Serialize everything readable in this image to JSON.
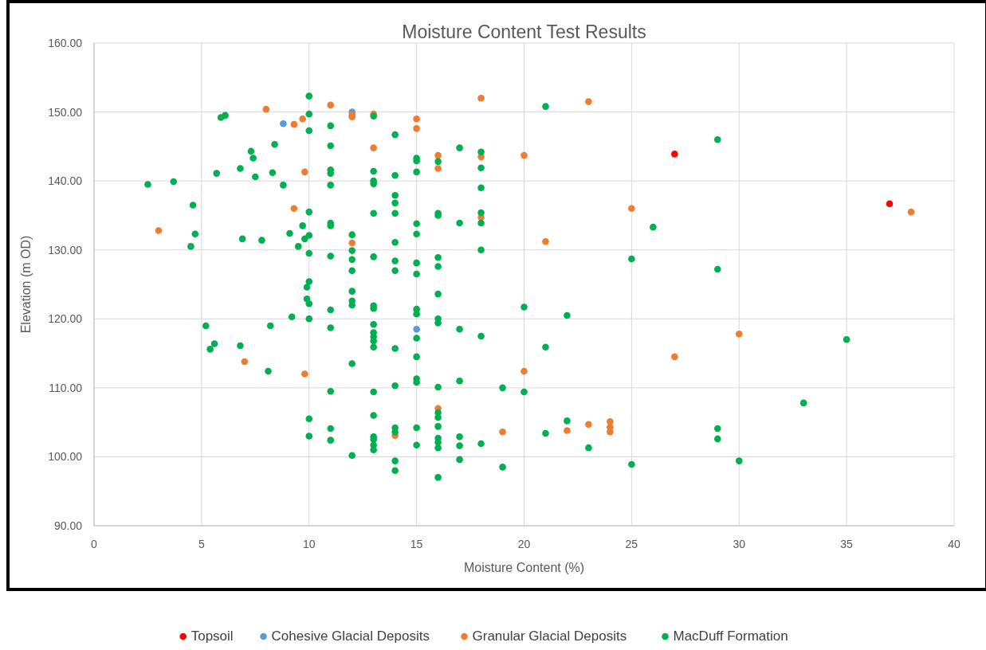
{
  "chart_data": {
    "type": "scatter",
    "title": "Moisture Content Test Results",
    "xlabel": "Moisture Content (%)",
    "ylabel": "Elevation (m OD)",
    "xlim": [
      0,
      40
    ],
    "xticks": [
      0,
      5,
      10,
      15,
      20,
      25,
      30,
      35,
      40
    ],
    "ylim": [
      90,
      160
    ],
    "yticks": [
      {
        "value": 90,
        "label": "90.00"
      },
      {
        "value": 100,
        "label": "100.00"
      },
      {
        "value": 110,
        "label": "110.00"
      },
      {
        "value": 120,
        "label": "120.00"
      },
      {
        "value": 130,
        "label": "130.00"
      },
      {
        "value": 140,
        "label": "140.00"
      },
      {
        "value": 150,
        "label": "150.00"
      },
      {
        "value": 160,
        "label": "160.00"
      }
    ],
    "grid": true,
    "legend": "bottom",
    "marker": "circle",
    "series": [
      {
        "name": "Topsoil",
        "color": "#ff0000",
        "x": [
          27,
          37
        ],
        "values": [
          143.9,
          136.7
        ]
      },
      {
        "name": "Cohesive Glacial Deposits",
        "color": "#5b9bd5",
        "x": [
          8.8,
          12,
          15
        ],
        "values": [
          148.3,
          150.0,
          118.5
        ]
      },
      {
        "name": "Granular Glacial Deposits",
        "color": "#ed7d31",
        "x": [
          8,
          9.3,
          9.7,
          11,
          12,
          12,
          13,
          15,
          15,
          18,
          23,
          13,
          16,
          16,
          18,
          20,
          9.8,
          9.3,
          3,
          12,
          18,
          21,
          25,
          38,
          7,
          9.8,
          14,
          16,
          19,
          20,
          22,
          23,
          24,
          24,
          24,
          27,
          30
        ],
        "values": [
          150.4,
          148.2,
          149.0,
          151.0,
          149.6,
          149.3,
          149.7,
          149.0,
          147.6,
          152.0,
          151.5,
          144.8,
          143.7,
          141.8,
          143.5,
          143.7,
          141.3,
          136.0,
          132.8,
          131.0,
          134.7,
          131.2,
          136.0,
          135.5,
          113.8,
          112.0,
          103.1,
          107.0,
          103.6,
          112.4,
          103.8,
          104.7,
          105.1,
          104.3,
          103.6,
          114.5,
          117.8
        ]
      },
      {
        "name": "MacDuff Formation",
        "color": "#00b050",
        "x": [
          2.5,
          3.7,
          4.5,
          4.6,
          4.7,
          5.2,
          5.4,
          5.6,
          5.7,
          5.9,
          6.1,
          6.8,
          6.8,
          6.9,
          7.3,
          7.4,
          7.5,
          7.8,
          8.1,
          8.2,
          8.3,
          8.4,
          8.8,
          9.1,
          9.2,
          9.5,
          9.7,
          9.8,
          9.9,
          9.9,
          10,
          10,
          10,
          10,
          10,
          10,
          10,
          10,
          10,
          10,
          10,
          11,
          11,
          11,
          11,
          11,
          11,
          11,
          11,
          11,
          11,
          11,
          11,
          11,
          12,
          12,
          12,
          12,
          12,
          12,
          12,
          12,
          12,
          13,
          13,
          13,
          13,
          13,
          13,
          13,
          13,
          13,
          13,
          13,
          13,
          13,
          13,
          13,
          13,
          13,
          13,
          13,
          14,
          14,
          14,
          14,
          14,
          14,
          14,
          14,
          14,
          14,
          14,
          14,
          14,
          14,
          15,
          15,
          15,
          15,
          15,
          15,
          15,
          15,
          15,
          15,
          15,
          15,
          15,
          15,
          15,
          16,
          16,
          16,
          16,
          16,
          16,
          16,
          16,
          16,
          16,
          16,
          16,
          16,
          16,
          16,
          16,
          17,
          17,
          17,
          17,
          17,
          17,
          17,
          18,
          18,
          18,
          18,
          18,
          18,
          18,
          18,
          19,
          19,
          20,
          20,
          21,
          21,
          21,
          22,
          22,
          23,
          25,
          25,
          26,
          29,
          29,
          29,
          29,
          30,
          33,
          35
        ],
        "values": [
          139.5,
          139.9,
          130.5,
          136.5,
          132.3,
          119.0,
          115.6,
          116.4,
          141.1,
          149.2,
          149.5,
          141.8,
          116.1,
          131.6,
          144.3,
          143.3,
          140.6,
          131.4,
          112.4,
          119.0,
          141.2,
          145.3,
          139.4,
          132.4,
          120.3,
          130.5,
          133.5,
          131.6,
          122.9,
          124.6,
          152.3,
          149.7,
          147.3,
          135.5,
          132.1,
          129.5,
          125.4,
          122.2,
          120.0,
          105.5,
          103.0,
          148.0,
          145.1,
          141.6,
          141.1,
          139.4,
          133.9,
          133.5,
          129.1,
          121.3,
          118.7,
          109.5,
          104.1,
          102.4,
          132.2,
          129.9,
          128.6,
          127.0,
          124.0,
          122.6,
          122.0,
          113.5,
          100.2,
          149.4,
          141.4,
          140.0,
          139.6,
          135.3,
          129.0,
          121.9,
          121.5,
          119.2,
          118.0,
          117.4,
          116.8,
          115.9,
          109.4,
          106.0,
          102.9,
          102.5,
          101.7,
          101.0,
          146.7,
          140.8,
          137.9,
          136.8,
          135.3,
          131.1,
          128.4,
          127.0,
          115.7,
          110.3,
          104.2,
          103.6,
          99.4,
          98.0,
          143.3,
          142.9,
          141.3,
          133.8,
          132.3,
          128.1,
          126.5,
          121.4,
          120.7,
          117.2,
          114.5,
          111.3,
          110.8,
          104.2,
          101.7,
          142.8,
          135.3,
          135.0,
          128.9,
          127.6,
          123.6,
          120.0,
          119.4,
          110.1,
          106.4,
          105.7,
          104.4,
          102.7,
          102.1,
          101.3,
          97.0,
          144.8,
          133.9,
          118.5,
          111.0,
          102.9,
          101.6,
          99.6,
          144.2,
          141.9,
          139.0,
          135.4,
          133.9,
          130.0,
          117.5,
          101.9,
          110.0,
          98.5,
          121.7,
          109.4,
          150.8,
          115.9,
          103.4,
          120.5,
          105.2,
          101.3,
          128.7,
          98.9,
          133.3,
          146.0,
          127.2,
          104.1,
          102.6,
          99.4,
          107.8,
          117.0
        ]
      }
    ]
  }
}
